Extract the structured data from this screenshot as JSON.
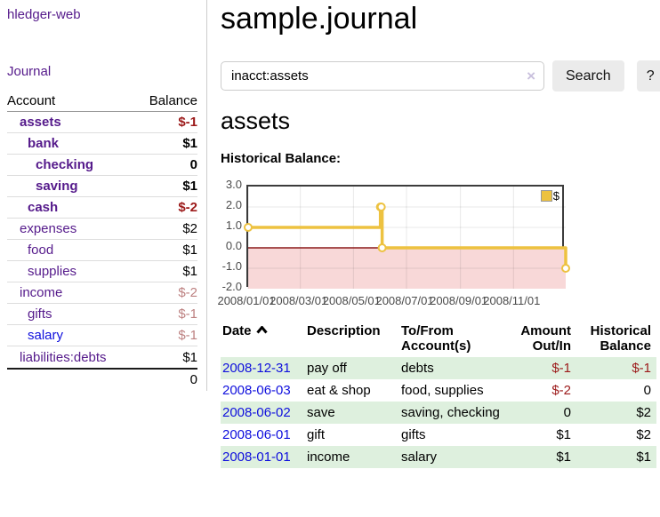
{
  "app": {
    "title": "hledger-web"
  },
  "sidebar": {
    "journal_label": "Journal",
    "table": {
      "headers": {
        "account": "Account",
        "balance": "Balance"
      },
      "rows": [
        {
          "name": "assets",
          "balance": "$-1",
          "depth": 1,
          "bold": true
        },
        {
          "name": "bank",
          "balance": "$1",
          "depth": 2,
          "bold": true
        },
        {
          "name": "checking",
          "balance": "0",
          "depth": 3,
          "bold": true
        },
        {
          "name": "saving",
          "balance": "$1",
          "depth": 3,
          "bold": true
        },
        {
          "name": "cash",
          "balance": "$-2",
          "depth": 2,
          "bold": true
        },
        {
          "name": "expenses",
          "balance": "$2",
          "depth": 1,
          "bold": false
        },
        {
          "name": "food",
          "balance": "$1",
          "depth": 2,
          "bold": false
        },
        {
          "name": "supplies",
          "balance": "$1",
          "depth": 2,
          "bold": false
        },
        {
          "name": "income",
          "balance": "$-2",
          "depth": 1,
          "bold": false
        },
        {
          "name": "gifts",
          "balance": "$-1",
          "depth": 2,
          "bold": false
        },
        {
          "name": "salary",
          "balance": "$-1",
          "depth": 2,
          "bold": false
        },
        {
          "name": "liabilities:debts",
          "balance": "$1",
          "depth": 1,
          "bold": false
        }
      ],
      "total": "0"
    }
  },
  "main": {
    "title": "sample.journal",
    "search": {
      "value": "inacct:assets",
      "clear_icon": "×",
      "button_label": "Search",
      "help_label": "?"
    },
    "account_heading": "assets",
    "chart_label": "Historical Balance:"
  },
  "chart_data": {
    "type": "line",
    "step": true,
    "title": "Historical Balance",
    "series": [
      {
        "name": "$",
        "color": "#edc240",
        "points": [
          {
            "x": "2008-01-01",
            "y": 1
          },
          {
            "x": "2008-06-01",
            "y": 2
          },
          {
            "x": "2008-06-02",
            "y": 2
          },
          {
            "x": "2008-06-03",
            "y": 0
          },
          {
            "x": "2008-12-31",
            "y": -1
          }
        ]
      }
    ],
    "xlim": [
      "2008-01-01",
      "2008-12-31"
    ],
    "ylim": [
      -2,
      3
    ],
    "x_ticks": [
      "2008/01/01",
      "2008/03/01",
      "2008/05/01",
      "2008/07/01",
      "2008/09/01",
      "2008/11/01"
    ],
    "y_ticks": [
      "3.0",
      "2.0",
      "1.0",
      "0.0",
      "-1.0",
      "-2.0"
    ],
    "legend_position": "top-right",
    "grid": true,
    "negative_region_shaded": true
  },
  "transactions": {
    "headers": {
      "date": "Date",
      "description": "Description",
      "accounts": "To/From Account(s)",
      "amount": "Amount Out/In",
      "balance": "Historical Balance"
    },
    "rows": [
      {
        "date": "2008-12-31",
        "description": "pay off",
        "accounts": "debts",
        "amount": "$-1",
        "balance": "$-1"
      },
      {
        "date": "2008-06-03",
        "description": "eat & shop",
        "accounts": "food, supplies",
        "amount": "$-2",
        "balance": "0"
      },
      {
        "date": "2008-06-02",
        "description": "save",
        "accounts": "saving, checking",
        "amount": "0",
        "balance": "$2"
      },
      {
        "date": "2008-06-01",
        "description": "gift",
        "accounts": "gifts",
        "amount": "$1",
        "balance": "$2"
      },
      {
        "date": "2008-01-01",
        "description": "income",
        "accounts": "salary",
        "amount": "$1",
        "balance": "$1"
      }
    ]
  },
  "colors": {
    "link_purple": "#551a8b",
    "link_blue": "#0f0fdd",
    "negative_strong": "#9c1a1a",
    "negative_muted": "#bd8181",
    "series_yellow": "#edc240",
    "chart_negative_bg": "#f8d8d8",
    "zero_line": "#8b1a1a",
    "row_stripe_green": "#def0de",
    "grid_line": "rgba(0,0,0,0.09)"
  }
}
